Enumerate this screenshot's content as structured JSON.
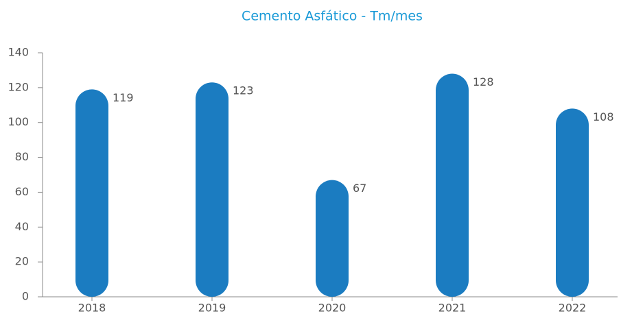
{
  "chart_data": {
    "type": "bar",
    "title": "Cemento Asfático - Tm/mes",
    "categories": [
      "2018",
      "2019",
      "2020",
      "2021",
      "2022"
    ],
    "values": [
      119,
      123,
      67,
      128,
      108
    ],
    "color": "#1b7cc1",
    "ylim": [
      0,
      140
    ],
    "yticks": [
      0,
      20,
      40,
      60,
      80,
      100,
      120,
      140
    ],
    "grid": false
  }
}
